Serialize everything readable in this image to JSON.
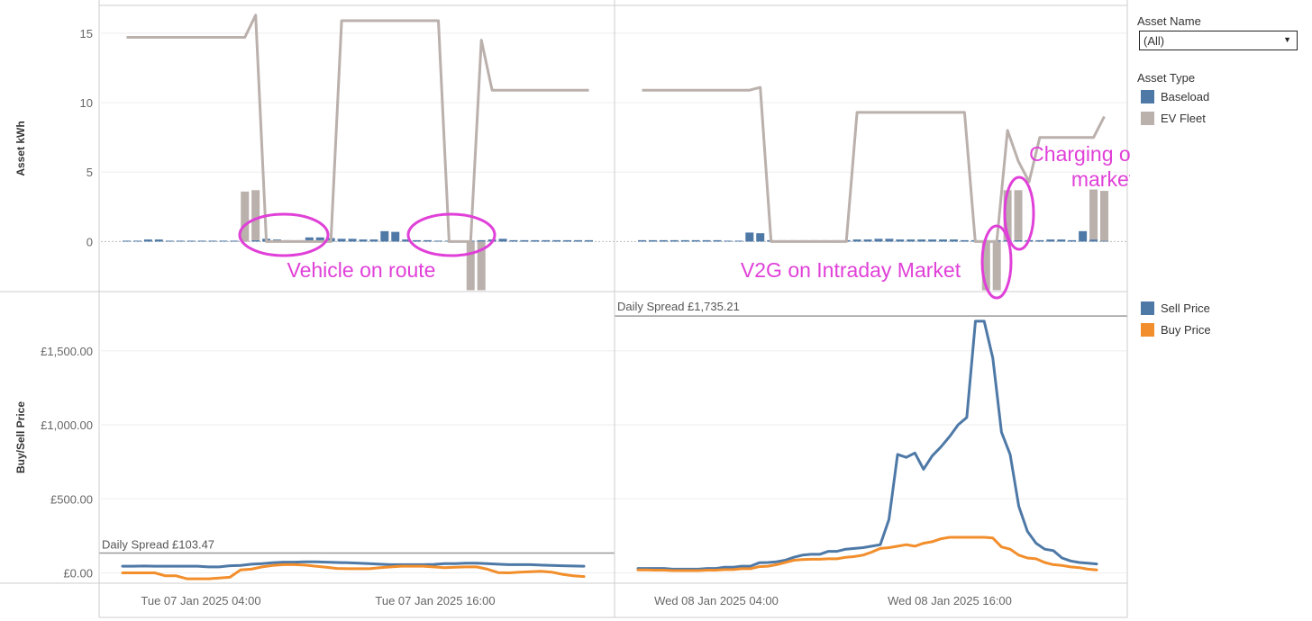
{
  "filters": {
    "asset_name_title": "Asset Name",
    "asset_name_value": "(All)"
  },
  "legends": {
    "asset_type_title": "Asset Type",
    "asset_types": [
      {
        "label": "Baseload",
        "color": "#4e79a7"
      },
      {
        "label": "EV Fleet",
        "color": "#bab0ac"
      }
    ],
    "prices": [
      {
        "label": "Sell Price",
        "color": "#4e79a7"
      },
      {
        "label": "Buy Price",
        "color": "#f28e2b"
      }
    ]
  },
  "annotations": [
    {
      "label": "Vehicle on route"
    },
    {
      "label": "V2G on Intraday Market"
    },
    {
      "label": "Charging on DA market"
    }
  ],
  "chart_data": [
    {
      "type": "bar",
      "ylabel": "Asset kWh",
      "ylim": [
        -3.6,
        17
      ],
      "yticks": [
        {
          "v": 0,
          "label": "0"
        },
        {
          "v": 5,
          "label": "5"
        },
        {
          "v": 10,
          "label": "10"
        },
        {
          "v": 15,
          "label": "15"
        }
      ],
      "panels": [
        {
          "x_start": "Tue 07 Jan 2025 00:00",
          "baseload_kwh": [
            0.05,
            0.05,
            0.15,
            0.15,
            0.05,
            0.05,
            0.05,
            0.05,
            0.05,
            0.05,
            0,
            0,
            0.1,
            0.2,
            0.15,
            0.1,
            0.1,
            0.3,
            0.3,
            0.25,
            0.2,
            0.2,
            0.15,
            0.15,
            0.75,
            0.7,
            0.15,
            0.1,
            0.1,
            0.05,
            0.05,
            0.05,
            0.05,
            0.1,
            0.15,
            0.2,
            0.1,
            0.1,
            0.1,
            0.1,
            0.1,
            0.1,
            0.1,
            0.1
          ],
          "ev_fleet_kwh": [
            0,
            0,
            0,
            0,
            0,
            0,
            0,
            0,
            0,
            0,
            0,
            3.6,
            3.6,
            0,
            0,
            0,
            0,
            0,
            0,
            0,
            0,
            0,
            0,
            0,
            0,
            0,
            0,
            0,
            0,
            0,
            0,
            0,
            -3.5,
            -3.5,
            0,
            0,
            0,
            0,
            0,
            0,
            0,
            0,
            0,
            0
          ],
          "ev_soc_line": [
            14.7,
            14.7,
            14.7,
            14.7,
            14.7,
            14.7,
            14.7,
            14.7,
            14.7,
            14.7,
            14.7,
            14.7,
            16.3,
            0,
            0,
            0,
            0,
            0,
            0,
            0,
            15.9,
            15.9,
            15.9,
            15.9,
            15.9,
            15.9,
            15.9,
            15.9,
            15.9,
            15.9,
            0,
            0,
            0,
            14.5,
            10.9,
            10.9,
            10.9,
            10.9,
            10.9,
            10.9,
            10.9,
            10.9,
            10.9,
            10.9
          ]
        },
        {
          "x_start": "Wed 08 Jan 2025 00:00",
          "baseload_kwh": [
            0.1,
            0.1,
            0.1,
            0.1,
            0.1,
            0.1,
            0.1,
            0.1,
            0.05,
            0.05,
            0.65,
            0.6,
            0.1,
            0.1,
            0.1,
            0.1,
            0.1,
            0.1,
            0.1,
            0.1,
            0.15,
            0.15,
            0.2,
            0.2,
            0.15,
            0.15,
            0.15,
            0.15,
            0.15,
            0.15,
            0.1,
            0.1,
            0.1,
            0.1,
            0.1,
            0.1,
            0.1,
            0.1,
            0.15,
            0.15,
            0.1,
            0.75,
            0.15,
            0.05
          ],
          "ev_fleet_kwh": [
            0,
            0,
            0,
            0,
            0,
            0,
            0,
            0,
            0,
            0,
            0,
            0,
            0,
            0,
            0,
            0,
            0,
            0,
            0,
            0,
            0,
            0,
            0,
            0,
            0,
            0,
            0,
            0,
            0,
            0,
            0,
            0,
            -3.5,
            -3.5,
            3.6,
            3.6,
            0,
            0,
            0,
            0,
            0,
            0,
            3.6,
            3.6
          ],
          "ev_soc_line": [
            10.9,
            10.9,
            10.9,
            10.9,
            10.9,
            10.9,
            10.9,
            10.9,
            10.9,
            10.9,
            10.9,
            11.1,
            0,
            0,
            0,
            0,
            0,
            0,
            0,
            0,
            9.3,
            9.3,
            9.3,
            9.3,
            9.3,
            9.3,
            9.3,
            9.3,
            9.3,
            9.3,
            9.3,
            0,
            0,
            0,
            8,
            5.8,
            4.3,
            7.5,
            7.5,
            7.5,
            7.5,
            7.5,
            7.5,
            9
          ]
        }
      ]
    },
    {
      "type": "line",
      "ylabel": "Buy/Sell Price",
      "ylim": [
        -70,
        1900
      ],
      "yticks": [
        {
          "v": 0,
          "label": "£0.00"
        },
        {
          "v": 500,
          "label": "£500.00"
        },
        {
          "v": 1000,
          "label": "£1,000.00"
        },
        {
          "v": 1500,
          "label": "£1,500.00"
        }
      ],
      "x_ticks": [
        {
          "label": "Tue 07 Jan 2025 04:00"
        },
        {
          "label": "Tue 07 Jan 2025 16:00"
        },
        {
          "label": "Wed 08 Jan 2025 04:00"
        },
        {
          "label": "Wed 08 Jan 2025 16:00"
        }
      ],
      "reference_lines": [
        {
          "label": "Daily Spread £103.47",
          "value": 103.47
        },
        {
          "label": "Daily Spread £1,735.21",
          "value": 1735.21
        }
      ],
      "panels": [
        {
          "x_start": "Tue 07 Jan 2025 00:00",
          "series": [
            {
              "name": "Sell Price",
              "color": "#4e79a7",
              "values": [
                45,
                45,
                46,
                45,
                45,
                45,
                45,
                45,
                40,
                40,
                48,
                50,
                58,
                62,
                68,
                72,
                72,
                75,
                75,
                72,
                70,
                68,
                65,
                62,
                58,
                55,
                55,
                55,
                55,
                57,
                62,
                62,
                65,
                65,
                62,
                58,
                55,
                55,
                55,
                52,
                50,
                48,
                46,
                45
              ]
            },
            {
              "name": "Buy Price",
              "color": "#f28e2b",
              "values": [
                0,
                0,
                0,
                0,
                -20,
                -20,
                -40,
                -40,
                -40,
                -35,
                -30,
                20,
                25,
                40,
                50,
                55,
                55,
                52,
                45,
                38,
                30,
                28,
                28,
                28,
                35,
                40,
                45,
                45,
                45,
                40,
                35,
                38,
                40,
                40,
                25,
                2,
                0,
                5,
                8,
                10,
                5,
                -10,
                -20,
                -25
              ]
            }
          ]
        },
        {
          "x_start": "Wed 08 Jan 2025 00:00",
          "series": [
            {
              "name": "Sell Price",
              "color": "#4e79a7",
              "values": [
                30,
                30,
                30,
                30,
                25,
                25,
                25,
                25,
                30,
                30,
                38,
                38,
                45,
                45,
                68,
                70,
                75,
                85,
                105,
                120,
                125,
                125,
                145,
                145,
                160,
                165,
                170,
                180,
                190,
                360,
                800,
                780,
                810,
                700,
                790,
                850,
                920,
                1000,
                1050,
                1700,
                1700,
                1450,
                950,
                800,
                450,
                280,
                200,
                160,
                150,
                100,
                80,
                70,
                65,
                60
              ]
            },
            {
              "name": "Buy Price",
              "color": "#f28e2b",
              "values": [
                20,
                20,
                18,
                18,
                15,
                15,
                15,
                15,
                18,
                18,
                22,
                22,
                28,
                28,
                42,
                45,
                55,
                70,
                85,
                90,
                92,
                92,
                95,
                95,
                105,
                110,
                120,
                140,
                165,
                170,
                180,
                190,
                180,
                200,
                210,
                230,
                240,
                240,
                240,
                240,
                240,
                235,
                175,
                160,
                120,
                100,
                95,
                70,
                55,
                50,
                40,
                35,
                25,
                20
              ]
            }
          ]
        }
      ]
    }
  ]
}
